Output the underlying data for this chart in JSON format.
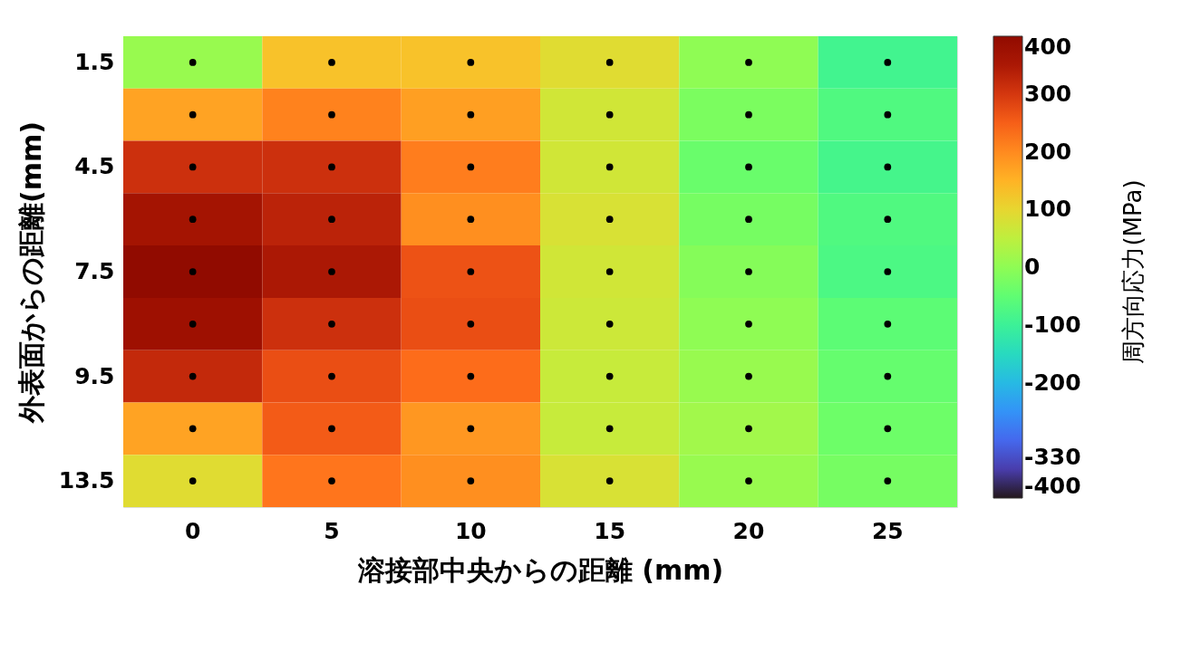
{
  "chart_data": {
    "type": "heatmap",
    "xlabel": "溶接部中央からの距離 (mm)",
    "ylabel": "外表面からの距離(mm)",
    "clabel": "周方向応力(MPa)",
    "categories": [
      "0",
      "5",
      "10",
      "15",
      "20",
      "25"
    ],
    "y_categories": [
      "1.5",
      null,
      "4.5",
      null,
      "7.5",
      null,
      "9.5",
      null,
      "13.5"
    ],
    "cells": [
      [
        10,
        130,
        130,
        90,
        0,
        -90
      ],
      [
        170,
        210,
        175,
        70,
        -20,
        -70
      ],
      [
        310,
        310,
        215,
        70,
        -40,
        -85
      ],
      [
        360,
        330,
        195,
        80,
        -25,
        -70
      ],
      [
        400,
        350,
        265,
        70,
        -10,
        -75
      ],
      [
        370,
        310,
        270,
        65,
        0,
        -55
      ],
      [
        320,
        270,
        235,
        60,
        10,
        -45
      ],
      [
        170,
        255,
        185,
        60,
        20,
        -35
      ],
      [
        90,
        225,
        195,
        80,
        10,
        -25
      ]
    ],
    "clim": [
      -400,
      400
    ],
    "cticks": [
      400,
      300,
      200,
      100,
      0,
      -100,
      -200,
      -330,
      -400
    ],
    "marker": "circle"
  }
}
